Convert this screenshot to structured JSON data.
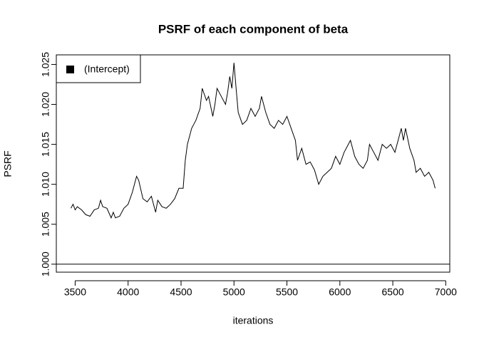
{
  "chart_data": {
    "type": "line",
    "title": "PSRF of each component of beta",
    "x_label": "iterations",
    "y_label": "PSRF",
    "x": [
      3460,
      3480,
      3500,
      3520,
      3560,
      3600,
      3640,
      3680,
      3720,
      3740,
      3760,
      3800,
      3840,
      3860,
      3880,
      3920,
      3960,
      4000,
      4040,
      4080,
      4100,
      4140,
      4180,
      4220,
      4260,
      4280,
      4320,
      4360,
      4400,
      4440,
      4480,
      4520,
      4540,
      4560,
      4600,
      4640,
      4680,
      4700,
      4740,
      4760,
      4800,
      4820,
      4840,
      4880,
      4920,
      4940,
      4960,
      4980,
      5000,
      5020,
      5040,
      5080,
      5120,
      5160,
      5200,
      5240,
      5260,
      5300,
      5340,
      5380,
      5420,
      5460,
      5500,
      5540,
      5580,
      5600,
      5640,
      5680,
      5720,
      5760,
      5800,
      5840,
      5880,
      5920,
      5960,
      6000,
      6040,
      6080,
      6100,
      6140,
      6180,
      6220,
      6260,
      6280,
      6320,
      6360,
      6400,
      6440,
      6480,
      6520,
      6560,
      6580,
      6600,
      6620,
      6660,
      6700,
      6720,
      6760,
      6800,
      6840,
      6880,
      6900
    ],
    "series": [
      {
        "name": "(Intercept)",
        "color": "#000000",
        "values": [
          1.007,
          1.0075,
          1.0068,
          1.0072,
          1.0068,
          1.0062,
          1.006,
          1.0068,
          1.007,
          1.008,
          1.0072,
          1.007,
          1.0058,
          1.0065,
          1.0058,
          1.006,
          1.007,
          1.0075,
          1.009,
          1.011,
          1.0105,
          1.0082,
          1.0078,
          1.0085,
          1.0065,
          1.008,
          1.0072,
          1.007,
          1.0075,
          1.0082,
          1.0095,
          1.0095,
          1.013,
          1.015,
          1.017,
          1.018,
          1.0195,
          1.022,
          1.0205,
          1.021,
          1.0185,
          1.02,
          1.022,
          1.021,
          1.02,
          1.0215,
          1.0235,
          1.022,
          1.0252,
          1.022,
          1.019,
          1.0175,
          1.018,
          1.0195,
          1.0185,
          1.0195,
          1.021,
          1.019,
          1.0175,
          1.017,
          1.018,
          1.0175,
          1.0185,
          1.017,
          1.0155,
          1.013,
          1.0145,
          1.0125,
          1.0128,
          1.0118,
          1.01,
          1.011,
          1.0115,
          1.012,
          1.0135,
          1.0125,
          1.014,
          1.015,
          1.0155,
          1.0135,
          1.0125,
          1.012,
          1.013,
          1.015,
          1.014,
          1.013,
          1.015,
          1.0145,
          1.015,
          1.014,
          1.016,
          1.017,
          1.0155,
          1.017,
          1.0145,
          1.013,
          1.0115,
          1.012,
          1.011,
          1.0115,
          1.0105,
          1.0095
        ]
      }
    ],
    "xlim": [
      3322,
      7038
    ],
    "ylim": [
      0.999,
      1.0262
    ],
    "xticks": [
      3500,
      4000,
      4500,
      5000,
      5500,
      6000,
      6500,
      7000
    ],
    "yticks": [
      {
        "value": 1.0,
        "label": "1.000"
      },
      {
        "value": 1.005,
        "label": "1.005"
      },
      {
        "value": 1.01,
        "label": "1.010"
      },
      {
        "value": 1.015,
        "label": "1.015"
      },
      {
        "value": 1.02,
        "label": "1.020"
      },
      {
        "value": 1.025,
        "label": "1.025"
      }
    ],
    "reference_line": 1,
    "legend": "topleft"
  }
}
